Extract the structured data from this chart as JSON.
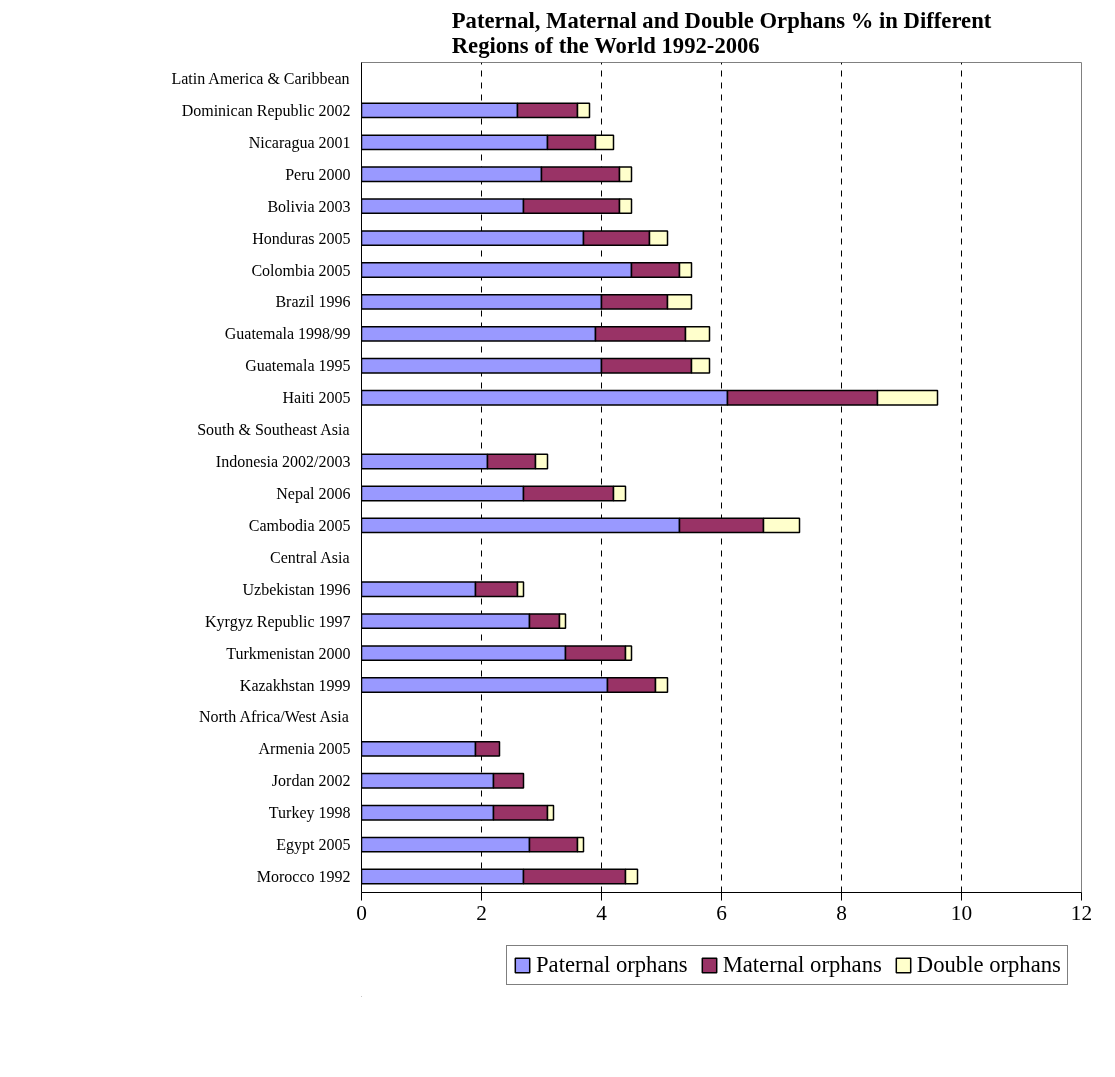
{
  "chart_data": {
    "type": "bar",
    "orientation": "horizontal",
    "stacked": true,
    "title": "Paternal, Maternal and Double Orphans % in Different Regions of the World 1992-2006",
    "categories": [
      "Latin America & Caribbean",
      "Dominican Republic 2002",
      "Nicaragua 2001",
      "Peru 2000",
      "Bolivia 2003",
      "Honduras 2005",
      "Colombia 2005",
      "Brazil 1996",
      "Guatemala 1998/99",
      "Guatemala 1995",
      "Haiti 2005",
      "South & Southeast Asia",
      "Indonesia 2002/2003",
      "Nepal 2006",
      "Cambodia 2005",
      "Central Asia",
      "Uzbekistan 1996",
      "Kyrgyz Republic 1997",
      "Turkmenistan 2000",
      "Kazakhstan 1999",
      "North Africa/West Asia",
      "Armenia 2005",
      "Jordan 2002",
      "Turkey 1998",
      "Egypt 2005",
      "Morocco 1992"
    ],
    "series": [
      {
        "name": "Paternal orphans",
        "color": "#9999ff",
        "values": [
          null,
          2.6,
          3.1,
          3.0,
          2.7,
          3.7,
          4.5,
          4.0,
          3.9,
          4.0,
          6.1,
          null,
          2.1,
          2.7,
          5.3,
          null,
          1.9,
          2.8,
          3.4,
          4.1,
          null,
          1.9,
          2.2,
          2.2,
          2.8,
          2.7
        ]
      },
      {
        "name": "Maternal orphans",
        "color": "#993366",
        "values": [
          null,
          1.0,
          0.8,
          1.3,
          1.6,
          1.1,
          0.8,
          1.1,
          1.5,
          1.5,
          2.5,
          null,
          0.8,
          1.5,
          1.4,
          null,
          0.7,
          0.5,
          1.0,
          0.8,
          null,
          0.4,
          0.5,
          0.9,
          0.8,
          1.7
        ]
      },
      {
        "name": "Double orphans",
        "color": "#ffffcc",
        "values": [
          null,
          0.2,
          0.3,
          0.2,
          0.2,
          0.3,
          0.2,
          0.4,
          0.4,
          0.3,
          1.0,
          null,
          0.2,
          0.2,
          0.6,
          null,
          0.1,
          0.1,
          0.1,
          0.2,
          null,
          null,
          null,
          0.1,
          0.1,
          0.2
        ]
      }
    ],
    "xlim": [
      0,
      12
    ],
    "xticks": [
      0,
      2,
      4,
      6,
      8,
      10,
      12
    ],
    "grid": "x",
    "legend": "bottom"
  }
}
